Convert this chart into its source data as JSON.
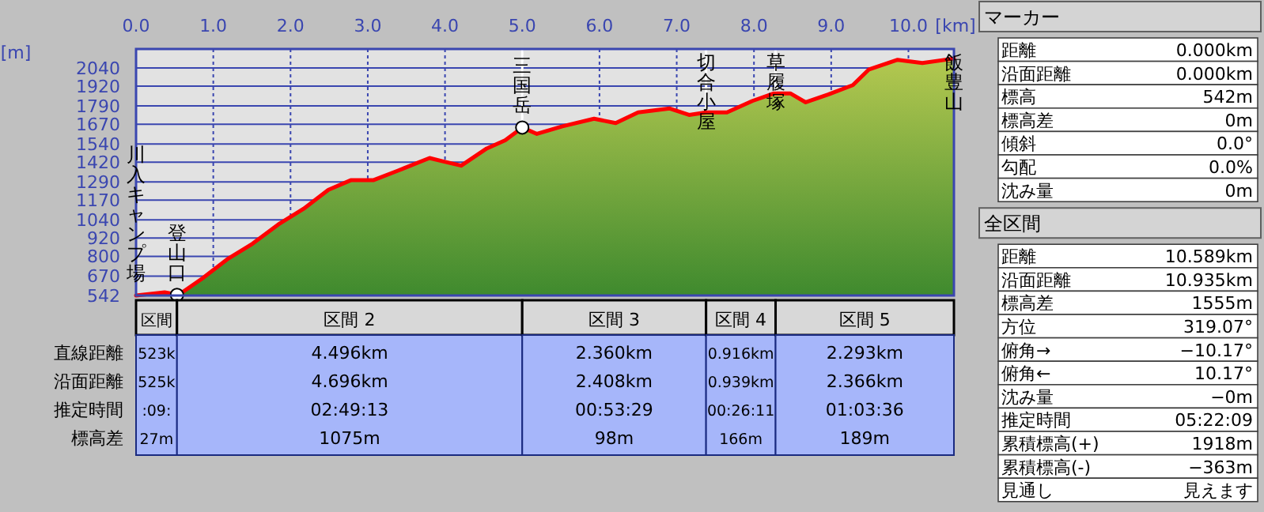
{
  "chart_data": [
    {
      "type": "area",
      "xlabel": "[km]",
      "ylabel": "[m]",
      "grid": true,
      "xlim": [
        0,
        10.589
      ],
      "ylim": [
        542,
        2165
      ],
      "xticks": [
        {
          "value": 0,
          "label": "0.0"
        },
        {
          "value": 1,
          "label": "1.0"
        },
        {
          "value": 2,
          "label": "2.0"
        },
        {
          "value": 3,
          "label": "3.0"
        },
        {
          "value": 4,
          "label": "4.0"
        },
        {
          "value": 5,
          "label": "5.0"
        },
        {
          "value": 6,
          "label": "6.0"
        },
        {
          "value": 7,
          "label": "7.0"
        },
        {
          "value": 8,
          "label": "8.0"
        },
        {
          "value": 9,
          "label": "9.0"
        },
        {
          "value": 10,
          "label": "10.0"
        }
      ],
      "yticks": [
        542,
        670,
        800,
        920,
        1040,
        1170,
        1290,
        1420,
        1540,
        1670,
        1790,
        1920,
        2040
      ],
      "series": [
        {
          "type": "area",
          "color": "#ff0000",
          "x": [
            0,
            0.37,
            0.55,
            0.86,
            1.18,
            1.51,
            1.84,
            2.17,
            2.49,
            2.78,
            3.07,
            3.39,
            3.8,
            3.97,
            4.21,
            4.54,
            4.78,
            5.0,
            5.19,
            5.52,
            5.93,
            6.21,
            6.5,
            6.91,
            7.16,
            7.38,
            7.65,
            7.98,
            8.26,
            8.47,
            8.67,
            8.96,
            9.28,
            9.49,
            9.86,
            10.18,
            10.589
          ],
          "values": [
            542,
            563,
            546,
            655,
            780,
            884,
            1009,
            1113,
            1238,
            1301,
            1301,
            1364,
            1447,
            1426,
            1397,
            1510,
            1564,
            1648,
            1606,
            1656,
            1706,
            1677,
            1748,
            1773,
            1731,
            1748,
            1748,
            1823,
            1873,
            1873,
            1814,
            1865,
            1927,
            2031,
            2094,
            2073,
            2102
          ]
        },
        {
          "type": "scatter",
          "marker": "circle",
          "color": "#ffffff",
          "x": [
            0.53,
            5.0
          ],
          "values": [
            546,
            1648
          ]
        }
      ],
      "ref_lines": [
        {
          "axis": "x",
          "value": 5.0,
          "color": "#ffffff"
        },
        {
          "axis": "x",
          "value": 7.38,
          "color": "#ffffff"
        },
        {
          "axis": "x",
          "value": 8.28,
          "color": "#ffffff"
        }
      ],
      "annotations": [
        {
          "text": "川入キャンプ場",
          "x": 0,
          "y": 542
        },
        {
          "text": "登山口",
          "x": 0.53,
          "y": 546
        },
        {
          "text": "三国岳",
          "x": 5.0,
          "y": 1648
        },
        {
          "text": "切合小屋",
          "x": 7.38,
          "y": 1748
        },
        {
          "text": "草履塚",
          "x": 8.28,
          "y": 1873
        },
        {
          "text": "飯豊山",
          "x": 10.589,
          "y": 2102
        }
      ]
    },
    {
      "type": "other",
      "categories": [
        "区間",
        "区間 2",
        "区間 3",
        "区間 4",
        "区間 5"
      ],
      "y_categories": [
        "直線距離",
        "沿面距離",
        "推定時間",
        "標高差"
      ],
      "cell_labels": [
        [
          "523k",
          "4.496km",
          "2.360km",
          "0.916km",
          "2.293km"
        ],
        [
          "525k",
          "4.696km",
          "2.408km",
          "0.939km",
          "2.366km"
        ],
        [
          ":09:",
          "02:49:13",
          "00:53:29",
          "00:26:11",
          "01:03:36"
        ],
        [
          "27m",
          "1075m",
          "98m",
          "166m",
          "189m"
        ]
      ]
    },
    {
      "type": "other",
      "title": "マーカー",
      "y_categories": [
        "距離",
        "沿面距離",
        "標高",
        "標高差",
        "傾斜",
        "勾配",
        "沈み量"
      ],
      "cell_labels": [
        [
          "0.000km"
        ],
        [
          "0.000km"
        ],
        [
          "542m"
        ],
        [
          "0m"
        ],
        [
          "0.0°"
        ],
        [
          "0.0%"
        ],
        [
          "0m"
        ]
      ]
    },
    {
      "type": "other",
      "title": "全区間",
      "y_categories": [
        "距離",
        "沿面距離",
        "標高差",
        "方位",
        "俯角→",
        "俯角←",
        "沈み量",
        "推定時間",
        "累積標高(+)",
        "累積標高(-)",
        "見通し"
      ],
      "cell_labels": [
        [
          "10.589km"
        ],
        [
          "10.935km"
        ],
        [
          "1555m"
        ],
        [
          "319.07°"
        ],
        [
          "−10.17°"
        ],
        [
          "10.17°"
        ],
        [
          "−0m"
        ],
        [
          "05:22:09"
        ],
        [
          "1918m"
        ],
        [
          "−363m"
        ],
        [
          "見えます"
        ]
      ]
    }
  ]
}
